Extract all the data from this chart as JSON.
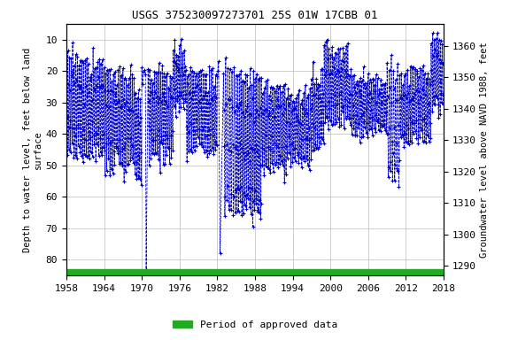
{
  "title": "USGS 375230097273701 25S 01W 17CBB 01",
  "ylabel_left": "Depth to water level, feet below land\nsurface",
  "ylabel_right": "Groundwater level above NAVD 1988, feet",
  "xlim": [
    1958,
    2018
  ],
  "ylim_left": [
    85,
    5
  ],
  "ylim_right": [
    1287,
    1367
  ],
  "yticks_left": [
    10,
    20,
    30,
    40,
    50,
    60,
    70,
    80
  ],
  "yticks_right": [
    1290,
    1300,
    1310,
    1320,
    1330,
    1340,
    1350,
    1360
  ],
  "xticks": [
    1958,
    1964,
    1970,
    1976,
    1982,
    1988,
    1994,
    2000,
    2006,
    2012,
    2018
  ],
  "line_color": "#0000CC",
  "green_bar_color": "#22AA22",
  "background_color": "#ffffff",
  "grid_color": "#bbbbbb",
  "title_fontsize": 9,
  "axis_label_fontsize": 7.5,
  "tick_fontsize": 8,
  "legend_label": "Period of approved data",
  "green_bar_ylim": [
    83,
    85
  ]
}
